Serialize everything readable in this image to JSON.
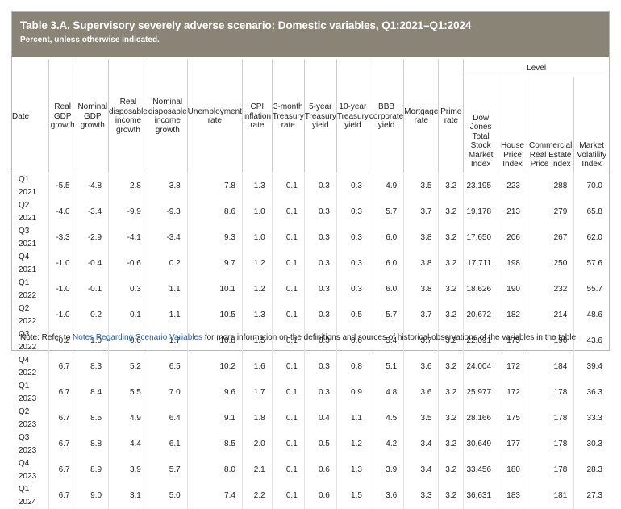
{
  "title": "Table 3.A. Supervisory severely adverse scenario: Domestic variables, Q1:2021–Q1:2024",
  "subtitle": "Percent, unless otherwise indicated.",
  "level_group": "Level",
  "columns": [
    "Date",
    "Real GDP growth",
    "Nominal GDP growth",
    "Real disposable income growth",
    "Nominal disposable income growth",
    "Unemployment rate",
    "CPI inflation rate",
    "3-month Treasury rate",
    "5-year Treasury yield",
    "10-year Treasury yield",
    "BBB corporate yield",
    "Mortgage rate",
    "Prime rate",
    "Dow Jones Total Stock Market Index",
    "House Price Index",
    "Commercial Real Estate Price Index",
    "Market Volatility Index"
  ],
  "rows": [
    [
      "Q1 2021",
      "-5.5",
      "-4.8",
      "2.8",
      "3.8",
      "7.8",
      "1.3",
      "0.1",
      "0.3",
      "0.3",
      "4.9",
      "3.5",
      "3.2",
      "23,195",
      "223",
      "288",
      "70.0"
    ],
    [
      "Q2 2021",
      "-4.0",
      "-3.4",
      "-9.9",
      "-9.3",
      "8.6",
      "1.0",
      "0.1",
      "0.3",
      "0.3",
      "5.7",
      "3.7",
      "3.2",
      "19,178",
      "213",
      "279",
      "65.8"
    ],
    [
      "Q3 2021",
      "-3.3",
      "-2.9",
      "-4.1",
      "-3.4",
      "9.3",
      "1.0",
      "0.1",
      "0.3",
      "0.3",
      "6.0",
      "3.8",
      "3.2",
      "17,650",
      "206",
      "267",
      "62.0"
    ],
    [
      "Q4 2021",
      "-1.0",
      "-0.4",
      "-0.6",
      "0.2",
      "9.7",
      "1.2",
      "0.1",
      "0.3",
      "0.3",
      "6.0",
      "3.8",
      "3.2",
      "17,711",
      "198",
      "250",
      "57.6"
    ],
    [
      "Q1 2022",
      "-1.0",
      "-0.1",
      "0.3",
      "1.1",
      "10.1",
      "1.2",
      "0.1",
      "0.3",
      "0.3",
      "6.0",
      "3.8",
      "3.2",
      "18,626",
      "190",
      "232",
      "55.7"
    ],
    [
      "Q2 2022",
      "-1.0",
      "0.2",
      "0.1",
      "1.1",
      "10.5",
      "1.3",
      "0.1",
      "0.3",
      "0.5",
      "5.7",
      "3.7",
      "3.2",
      "20,672",
      "182",
      "214",
      "48.6"
    ],
    [
      "Q3 2022",
      "-0.2",
      "1.0",
      "0.6",
      "1.7",
      "10.8",
      "1.5",
      "0.1",
      "0.3",
      "0.6",
      "5.4",
      "3.7",
      "3.2",
      "22,091",
      "175",
      "196",
      "43.6"
    ],
    [
      "Q4 2022",
      "6.7",
      "8.3",
      "5.2",
      "6.5",
      "10.2",
      "1.6",
      "0.1",
      "0.3",
      "0.8",
      "5.1",
      "3.6",
      "3.2",
      "24,004",
      "172",
      "184",
      "39.4"
    ],
    [
      "Q1 2023",
      "6.7",
      "8.4",
      "5.5",
      "7.0",
      "9.6",
      "1.7",
      "0.1",
      "0.3",
      "0.9",
      "4.8",
      "3.6",
      "3.2",
      "25,977",
      "172",
      "178",
      "36.3"
    ],
    [
      "Q2 2023",
      "6.7",
      "8.5",
      "4.9",
      "6.4",
      "9.1",
      "1.8",
      "0.1",
      "0.4",
      "1.1",
      "4.5",
      "3.5",
      "3.2",
      "28,166",
      "175",
      "178",
      "33.3"
    ],
    [
      "Q3 2023",
      "6.7",
      "8.8",
      "4.4",
      "6.1",
      "8.5",
      "2.0",
      "0.1",
      "0.5",
      "1.2",
      "4.2",
      "3.4",
      "3.2",
      "30,649",
      "177",
      "178",
      "30.3"
    ],
    [
      "Q4 2023",
      "6.7",
      "8.9",
      "3.9",
      "5.7",
      "8.0",
      "2.1",
      "0.1",
      "0.6",
      "1.3",
      "3.9",
      "3.4",
      "3.2",
      "33,456",
      "180",
      "178",
      "28.3"
    ],
    [
      "Q1 2024",
      "6.7",
      "9.0",
      "3.1",
      "5.0",
      "7.4",
      "2.2",
      "0.1",
      "0.6",
      "1.5",
      "3.6",
      "3.3",
      "3.2",
      "36,631",
      "183",
      "181",
      "27.3"
    ]
  ],
  "note_prefix": "Note: Refer to ",
  "note_link": "Notes Regarding Scenario Variables",
  "note_suffix": " for more information on the definitions and sources of historical observations of the variables in the table."
}
